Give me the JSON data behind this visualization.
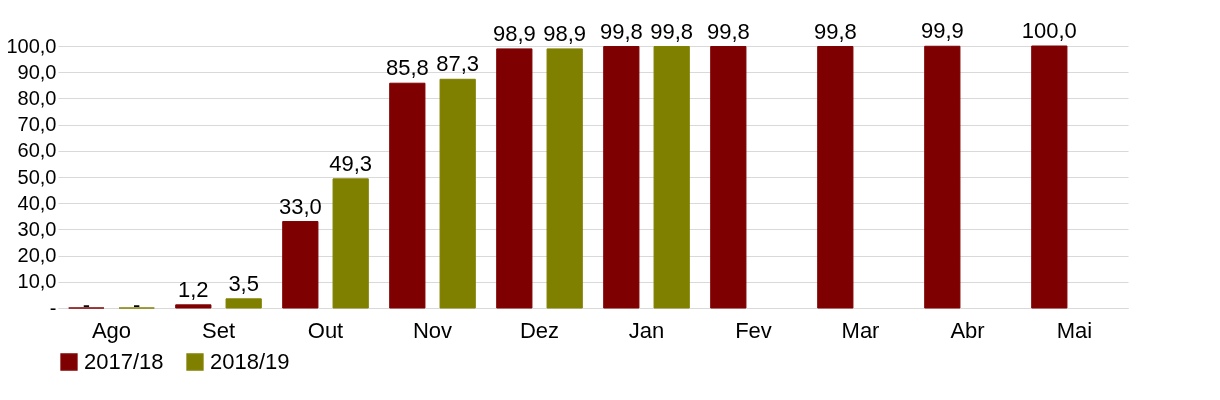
{
  "chart_data": {
    "type": "bar",
    "categories": [
      "Ago",
      "Set",
      "Out",
      "Nov",
      "Dez",
      "Jan",
      "Fev",
      "Mar",
      "Abr",
      "Mai"
    ],
    "series": [
      {
        "name": "2017/18",
        "color": "#7f0000",
        "values": [
          0,
          1.2,
          33.0,
          85.8,
          98.9,
          99.8,
          99.8,
          99.8,
          99.9,
          100.0
        ],
        "value_labels": [
          "-",
          "1,2",
          "33,0",
          "85,8",
          "98,9",
          "99,8",
          "99,8",
          "99,8",
          "99,9",
          "100,0"
        ]
      },
      {
        "name": "2018/19",
        "color": "#808000",
        "values": [
          0,
          3.5,
          49.3,
          87.3,
          98.9,
          99.8,
          null,
          null,
          null,
          null
        ],
        "value_labels": [
          "-",
          "3,5",
          "49,3",
          "87,3",
          "98,9",
          "99,8",
          null,
          null,
          null,
          null
        ]
      }
    ],
    "ylim": [
      0,
      100
    ],
    "yticks": [
      {
        "value": 0,
        "label": "-"
      },
      {
        "value": 10,
        "label": "10,0"
      },
      {
        "value": 20,
        "label": "20,0"
      },
      {
        "value": 30,
        "label": "30,0"
      },
      {
        "value": 40,
        "label": "40,0"
      },
      {
        "value": 50,
        "label": "50,0"
      },
      {
        "value": 60,
        "label": "60,0"
      },
      {
        "value": 70,
        "label": "70,0"
      },
      {
        "value": 80,
        "label": "80,0"
      },
      {
        "value": 90,
        "label": "90,0"
      },
      {
        "value": 100,
        "label": "100,0"
      }
    ],
    "grid": "y",
    "legend": "bottom"
  }
}
